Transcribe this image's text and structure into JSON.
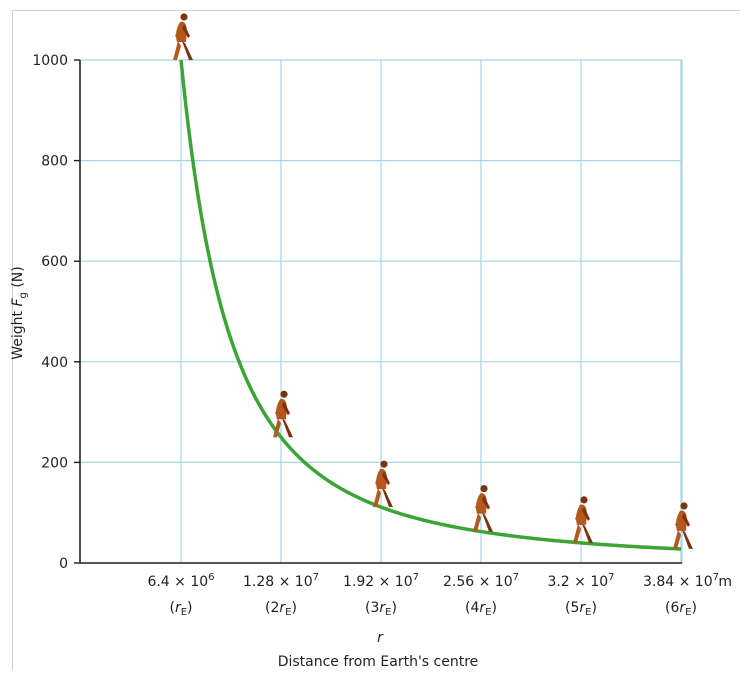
{
  "chart_data": {
    "type": "line",
    "ylabel": "Weight F_g (N)",
    "xlabel_symbol": "r",
    "xlabel": "Distance from Earth's centre",
    "x_unit": "m",
    "ylim": [
      0,
      1000
    ],
    "y_ticks": [
      "0",
      "200",
      "400",
      "600",
      "800",
      "1000"
    ],
    "x_ticks": [
      {
        "value": "6.4 × 10^6",
        "mantissa": "6.4 × 10",
        "exp": "6",
        "sub": "(r_E)",
        "coef": "",
        "r": 1
      },
      {
        "value": "1.28 × 10^7",
        "mantissa": "1.28 × 10",
        "exp": "7",
        "sub": "(2r_E)",
        "coef": "2",
        "r": 2
      },
      {
        "value": "1.92 × 10^7",
        "mantissa": "1.92 × 10",
        "exp": "7",
        "sub": "(3r_E)",
        "coef": "3",
        "r": 3
      },
      {
        "value": "2.56 × 10^7",
        "mantissa": "2.56 × 10",
        "exp": "7",
        "sub": "(4r_E)",
        "coef": "4",
        "r": 4
      },
      {
        "value": "3.2 × 10^7",
        "mantissa": "3.2 × 10",
        "exp": "7",
        "sub": "(5r_E)",
        "coef": "5",
        "r": 5
      },
      {
        "value": "3.84 × 10^7",
        "mantissa": "3.84 × 10",
        "exp": "7",
        "sub": "(6r_E)",
        "coef": "6",
        "r": 6
      }
    ],
    "series": [
      {
        "x_multiple_of_rE": [
          1,
          2,
          3,
          4,
          5,
          6
        ],
        "values": [
          1000,
          250,
          111,
          62.5,
          40,
          28
        ]
      }
    ],
    "grid": true,
    "colors": {
      "curve": "#3aa535",
      "grid": "#a8d4e6",
      "axis": "#231f20",
      "figure": "#b5581f",
      "figure_dark": "#7a3412"
    }
  }
}
